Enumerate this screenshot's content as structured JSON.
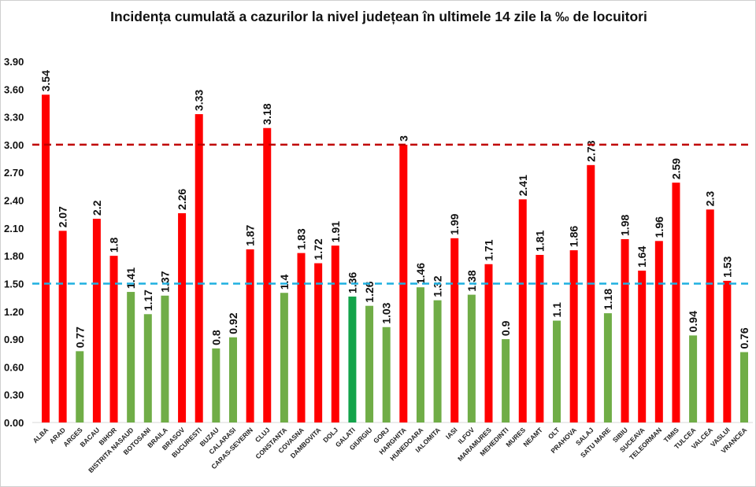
{
  "chart_data": {
    "type": "bar",
    "title": "Incidența cumulată a cazurilor la nivel județean în ultimele 14 zile la ‰ de locuitori",
    "xlabel": "",
    "ylabel": "",
    "ylim": [
      0,
      3.9
    ],
    "yticks": [
      "0.00",
      "0.30",
      "0.60",
      "0.90",
      "1.20",
      "1.50",
      "1.80",
      "2.10",
      "2.40",
      "2.70",
      "3.00",
      "3.30",
      "3.60",
      "3.90"
    ],
    "grid": false,
    "categories": [
      "ALBA",
      "ARAD",
      "ARGES",
      "BACAU",
      "BIHOR",
      "BISTRITA NASAUD",
      "BOTOSANI",
      "BRAILA",
      "BRASOV",
      "BUCURESTI",
      "BUZAU",
      "CALARASI",
      "CARAS-SEVERIN",
      "CLUJ",
      "CONSTANTA",
      "COVASNA",
      "DAMBOVITA",
      "DOLJ",
      "GALATI",
      "GIURGIU",
      "GORJ",
      "HARGHITA",
      "HUNEDOARA",
      "IALOMITA",
      "IASI",
      "ILFOV",
      "MARAMURES",
      "MEHEDINTI",
      "MURES",
      "NEAMT",
      "OLT",
      "PRAHOVA",
      "SALAJ",
      "SATU MARE",
      "SIBIU",
      "SUCEAVA",
      "TELEORMAN",
      "TIMIS",
      "TULCEA",
      "VALCEA",
      "VASLUI",
      "VRANCEA"
    ],
    "values": [
      3.54,
      2.07,
      0.77,
      2.2,
      1.8,
      1.41,
      1.17,
      1.37,
      2.26,
      3.33,
      0.8,
      0.92,
      1.87,
      3.18,
      1.4,
      1.83,
      1.72,
      1.91,
      1.36,
      1.26,
      1.03,
      3,
      1.46,
      1.32,
      1.99,
      1.38,
      1.71,
      0.9,
      2.41,
      1.81,
      1.1,
      1.86,
      2.78,
      1.18,
      1.98,
      1.64,
      1.96,
      2.59,
      0.94,
      2.3,
      1.53,
      0.76
    ],
    "data_labels": [
      "3.54",
      "2.07",
      "0.77",
      "2.2",
      "1.8",
      "1.41",
      "1.17",
      "1.37",
      "2.26",
      "3.33",
      "0.8",
      "0.92",
      "1.87",
      "3.18",
      "1.4",
      "1.83",
      "1.72",
      "1.91",
      "1.36",
      "1.26",
      "1.03",
      "3",
      "1.46",
      "1.32",
      "1.99",
      "1.38",
      "1.71",
      "0.9",
      "2.41",
      "1.81",
      "1.1",
      "1.86",
      "2.78",
      "1.18",
      "1.98",
      "1.64",
      "1.96",
      "2.59",
      "0.94",
      "2.3",
      "1.53",
      "0.76"
    ],
    "highlight_category": "GALATI",
    "colors": {
      "above": "#ff0000",
      "below": "#70ad47",
      "highlight": "#13a34a"
    },
    "threshold": 1.5,
    "reference_lines": [
      {
        "value": 3.0,
        "color": "#c00000",
        "style": "dashed"
      },
      {
        "value": 1.5,
        "color": "#1fb0e0",
        "style": "dashed"
      }
    ]
  }
}
